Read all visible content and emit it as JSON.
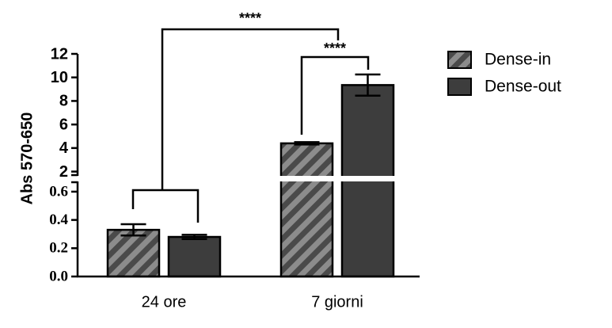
{
  "chart_data": {
    "type": "bar",
    "y_axis_label": "Abs 570-650",
    "categories": [
      "24 ore",
      "7 giorni"
    ],
    "series": [
      {
        "name": "Dense-in",
        "color": "#4a4a4a",
        "hatch": true,
        "values": [
          0.33,
          4.4
        ],
        "errors": [
          0.04,
          0.1
        ]
      },
      {
        "name": "Dense-out",
        "color": "#3d3d3d",
        "hatch": false,
        "values": [
          0.28,
          9.35
        ],
        "errors": [
          0.015,
          0.9
        ]
      }
    ],
    "y_axis_segments": [
      {
        "ylim": [
          0,
          0.65
        ],
        "yticks": [
          {
            "value": 0,
            "label": "0.0"
          },
          0.2,
          0.4,
          0.6
        ]
      },
      {
        "ylim": [
          1.5,
          12
        ],
        "yticks": [
          2,
          4,
          6,
          8,
          10,
          12
        ]
      }
    ],
    "annotations": [
      "****",
      "****"
    ],
    "legend": "right"
  }
}
